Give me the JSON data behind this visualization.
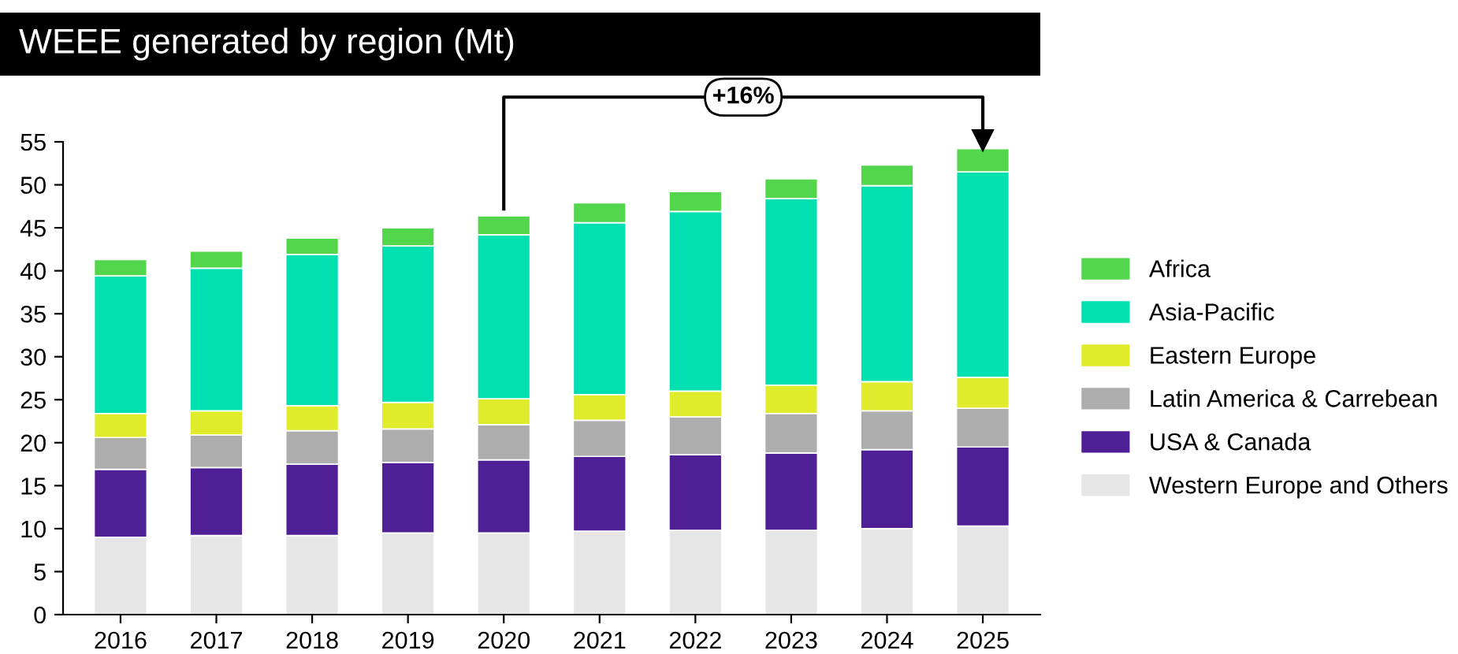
{
  "chart_data": {
    "type": "bar",
    "title": "WEEE generated by region (Mt)",
    "stacked": true,
    "categories": [
      "2016",
      "2017",
      "2018",
      "2019",
      "2020",
      "2021",
      "2022",
      "2023",
      "2024",
      "2025"
    ],
    "series": [
      {
        "name": "Western Europe and Others",
        "color": "#e6e6e6",
        "values": [
          9.0,
          9.2,
          9.2,
          9.5,
          9.5,
          9.7,
          9.8,
          9.8,
          10.0,
          10.3
        ]
      },
      {
        "name": "USA & Canada",
        "color": "#4f1f96",
        "values": [
          7.9,
          7.9,
          8.3,
          8.2,
          8.5,
          8.7,
          8.8,
          9.0,
          9.2,
          9.2
        ]
      },
      {
        "name": "Latin America & Carrebean",
        "color": "#adadad",
        "values": [
          3.7,
          3.8,
          3.9,
          3.9,
          4.1,
          4.2,
          4.4,
          4.6,
          4.5,
          4.5
        ]
      },
      {
        "name": "Eastern Europe",
        "color": "#dfeb2b",
        "values": [
          2.8,
          2.8,
          2.9,
          3.1,
          3.0,
          3.0,
          3.0,
          3.3,
          3.4,
          3.6
        ]
      },
      {
        "name": "Asia-Pacific",
        "color": "#00e0b0",
        "values": [
          16.0,
          16.6,
          17.6,
          18.2,
          19.1,
          20.0,
          20.9,
          21.7,
          22.8,
          23.9
        ]
      },
      {
        "name": "Africa",
        "color": "#53d64b",
        "values": [
          1.9,
          2.0,
          1.9,
          2.1,
          2.2,
          2.3,
          2.3,
          2.3,
          2.4,
          2.7
        ]
      }
    ],
    "ylim": [
      0,
      55
    ],
    "yticks": [
      0,
      5,
      10,
      15,
      20,
      25,
      30,
      35,
      40,
      45,
      50,
      55
    ],
    "legend": "right",
    "grid": false,
    "annotations": [
      "+16%"
    ]
  }
}
